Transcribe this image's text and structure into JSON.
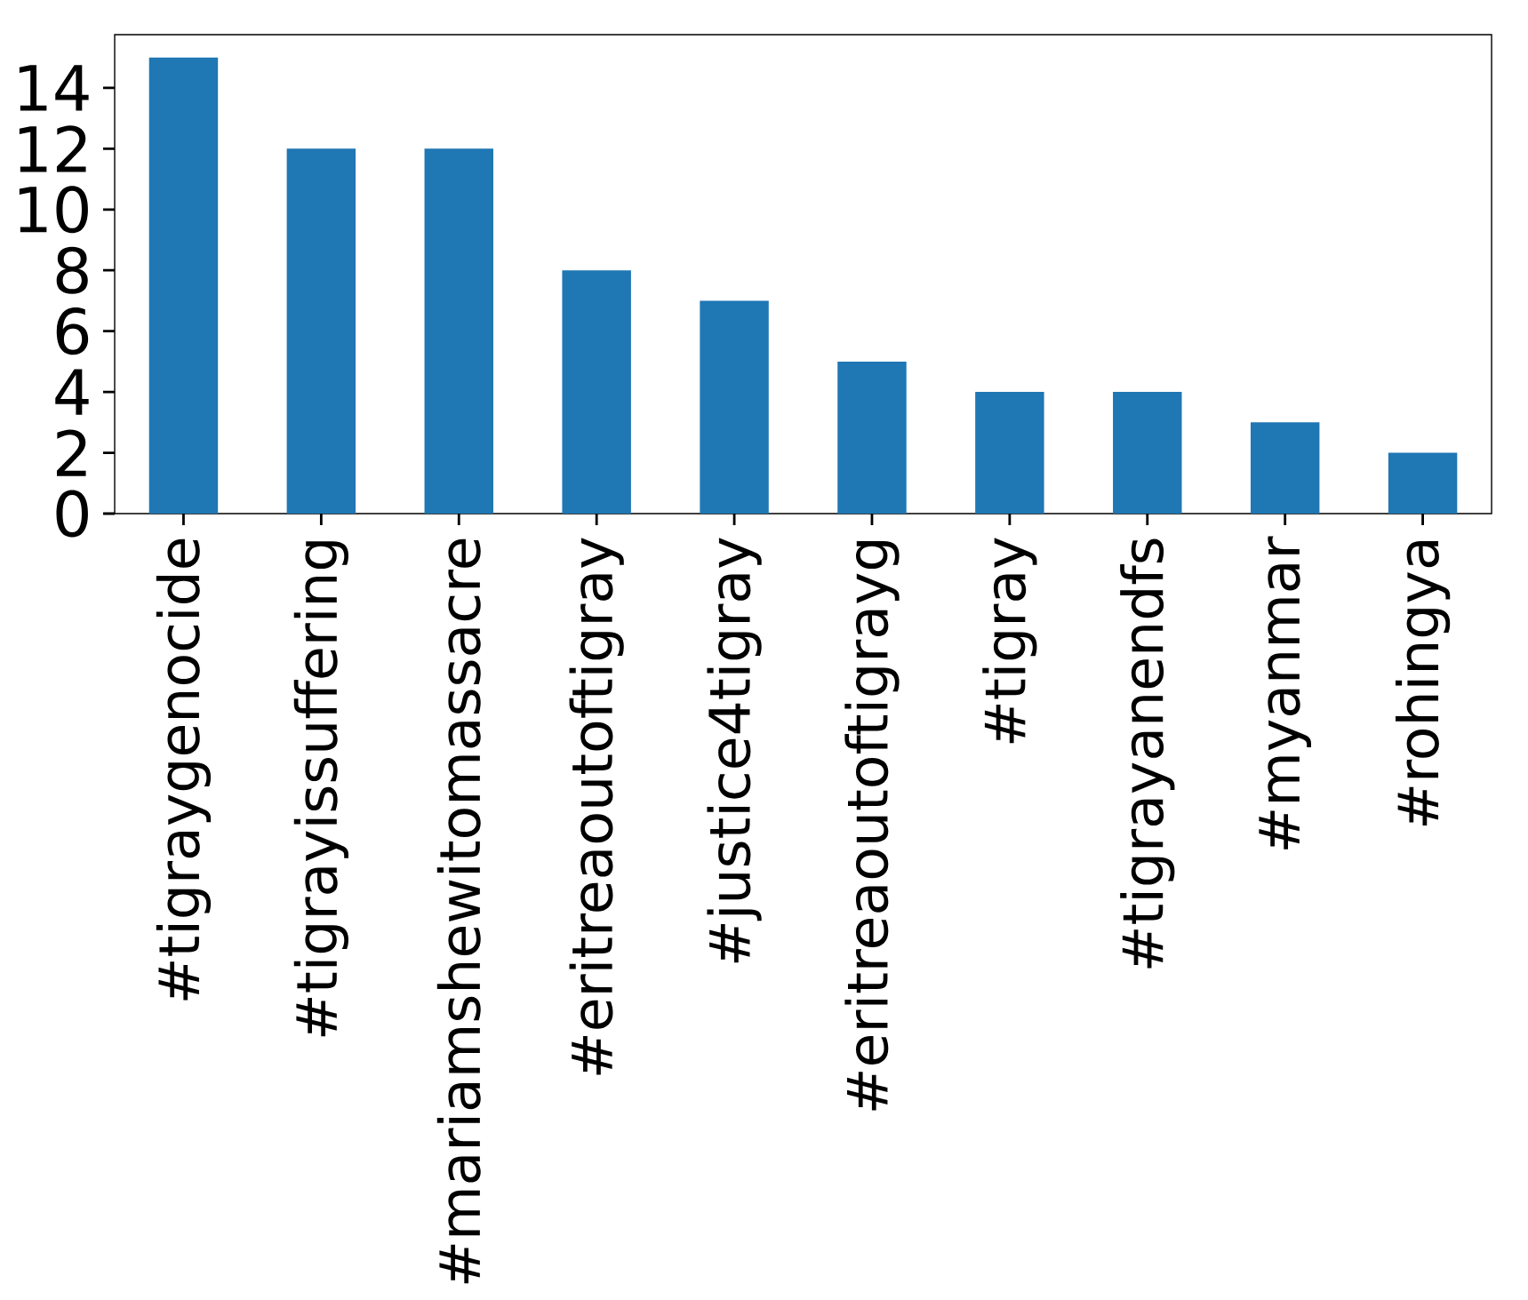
{
  "chart_data": {
    "type": "bar",
    "categories": [
      "#tigraygenocide",
      "#tigrayissuffering",
      "#mariamshewitomassacre",
      "#eritreaoutoftigray",
      "#justice4tigray",
      "#eritreaoutoftigrayg",
      "#tigray",
      "#tigrayanendfs",
      "#myanmar",
      "#rohingya"
    ],
    "values": [
      15,
      12,
      12,
      8,
      7,
      5,
      4,
      4,
      3,
      2
    ],
    "color": "#1f77b4",
    "ylim": [
      0,
      15.75
    ],
    "yticks": [
      0,
      2,
      4,
      6,
      8,
      10,
      12,
      14
    ]
  }
}
